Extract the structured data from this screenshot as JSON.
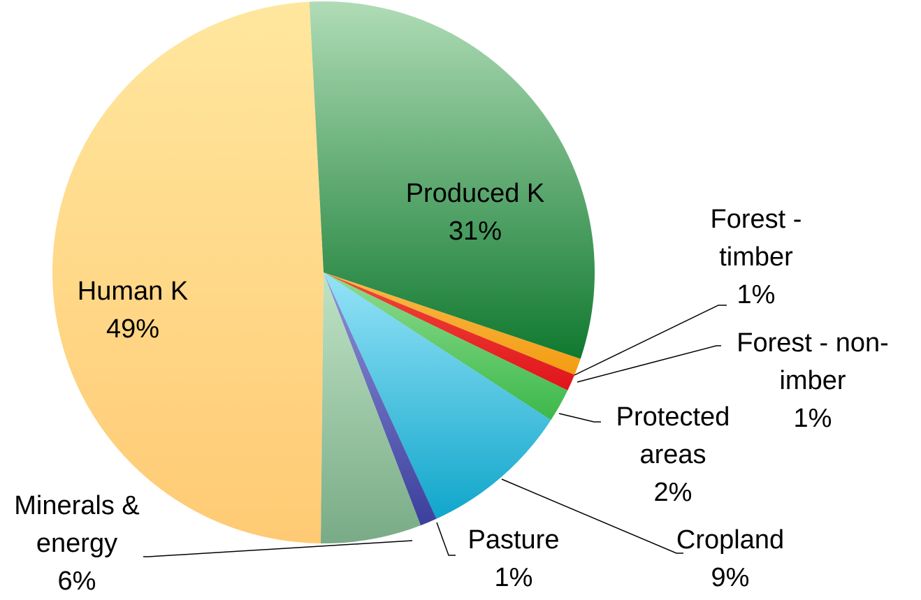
{
  "chart_data": {
    "type": "pie",
    "categories": [
      "Produced K",
      "Forest - timber",
      "Forest - non-imber",
      "Protected areas",
      "Cropland",
      "Pasture",
      "Minerals & energy",
      "Human K"
    ],
    "values": [
      31,
      1,
      1,
      2,
      9,
      1,
      6,
      49
    ],
    "value_labels": [
      "31%",
      "1%",
      "1%",
      "2%",
      "9%",
      "1%",
      "6%",
      "49%"
    ],
    "startangle": -3,
    "colors": [
      [
        "#b0dcb6",
        "#10792f"
      ],
      [
        "#f9b94a",
        "#f39c12"
      ],
      [
        "#f04a3a",
        "#e0141b"
      ],
      [
        "#8fdc8f",
        "#3cb84a"
      ],
      [
        "#95e3f7",
        "#10a6cb"
      ],
      [
        "#8f93d8",
        "#3c3f9c"
      ],
      [
        "#bfe3c6",
        "#79ab86"
      ],
      [
        "#ffe79e",
        "#ffca74"
      ]
    ]
  }
}
